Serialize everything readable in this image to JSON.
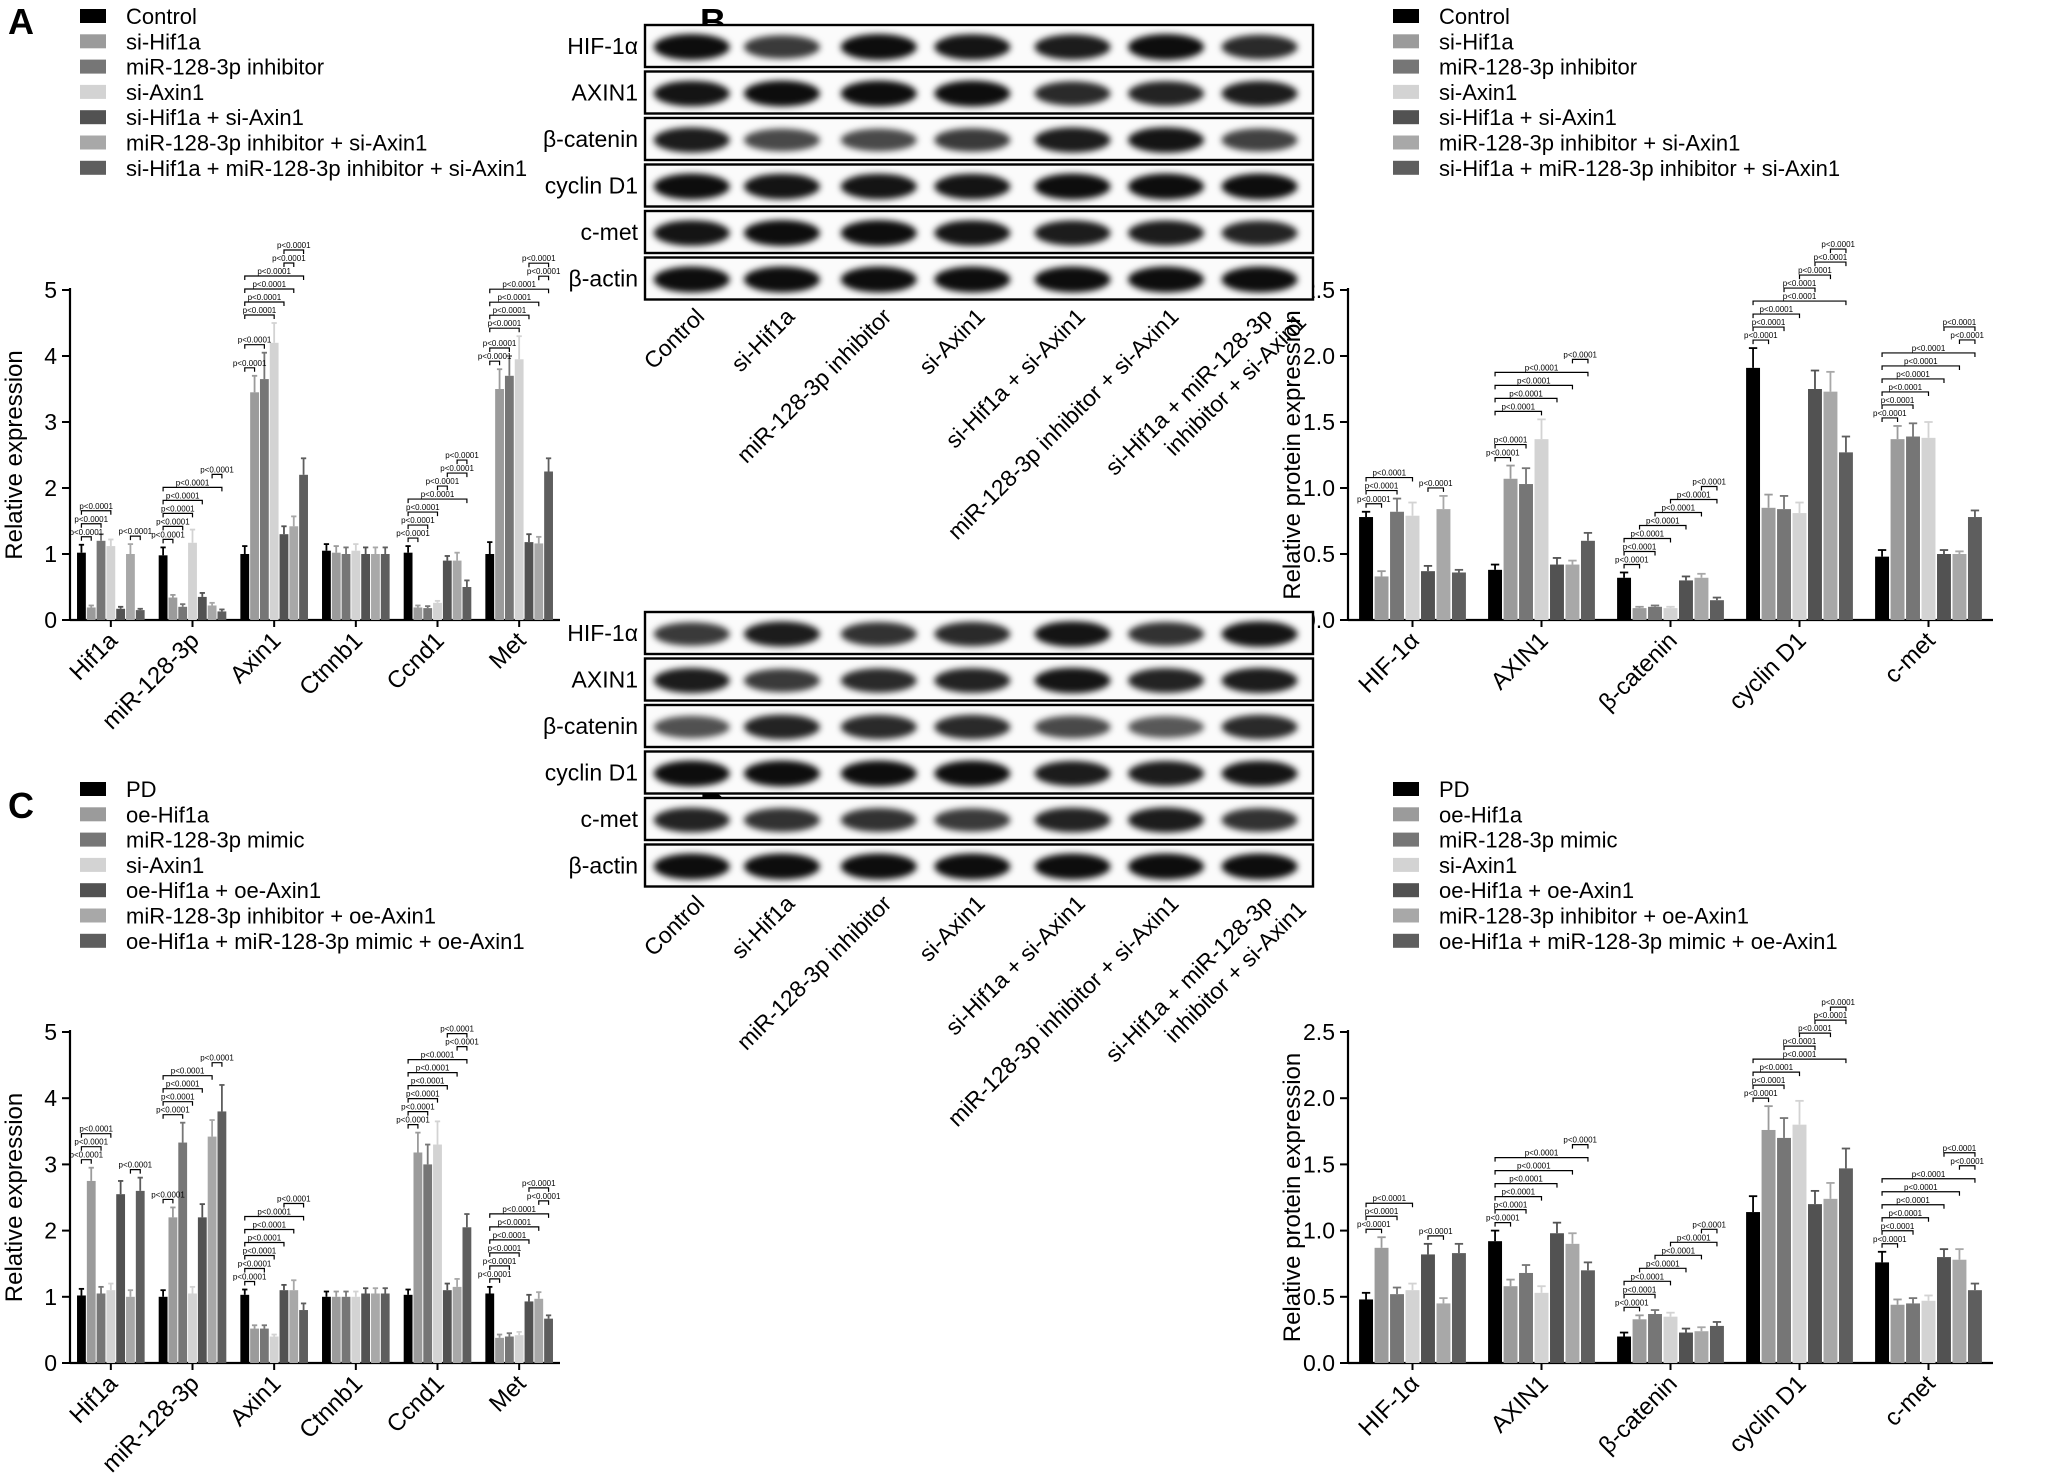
{
  "palette": [
    "#000000",
    "#9b9b9b",
    "#767676",
    "#d3d3d3",
    "#525252",
    "#a8a8a8",
    "#5e5e5e"
  ],
  "panels": [
    {
      "label": "A",
      "legend": [
        "Control",
        "si-Hif1a",
        "miR-128-3p inhibitor",
        "si-Axin1",
        "si-Hif1a + si-Axin1",
        "miR-128-3p inhibitor + si-Axin1",
        "si-Hif1a + miR-128-3p inhibitor + si-Axin1"
      ]
    },
    {
      "label": "B",
      "legend": [
        "Control",
        "si-Hif1a",
        "miR-128-3p inhibitor",
        "si-Axin1",
        "si-Hif1a + si-Axin1",
        "miR-128-3p inhibitor + si-Axin1",
        "si-Hif1a + miR-128-3p inhibitor + si-Axin1"
      ]
    },
    {
      "label": "C",
      "legend": [
        "PD",
        "oe-Hif1a",
        "miR-128-3p mimic",
        "si-Axin1",
        "oe-Hif1a + oe-Axin1",
        "miR-128-3p inhibitor + oe-Axin1",
        "oe-Hif1a + miR-128-3p mimic + oe-Axin1"
      ]
    },
    {
      "label": "D",
      "legend": [
        "PD",
        "oe-Hif1a",
        "miR-128-3p mimic",
        "si-Axin1",
        "oe-Hif1a + oe-Axin1",
        "miR-128-3p inhibitor + oe-Axin1",
        "oe-Hif1a + miR-128-3p mimic + oe-Axin1"
      ]
    }
  ],
  "blots": [
    {
      "panel": "B",
      "rows": [
        "HIF-1α",
        "AXIN1",
        "β-catenin",
        "cyclin D1",
        "c-met",
        "β-actin"
      ],
      "lanes": [
        "Control",
        "si-Hif1a",
        "miR-128-3p inhibitor",
        "si-Axin1",
        "si-Hif1a + si-Axin1",
        "miR-128-3p inhibitor + si-Axin1",
        "si-Hif1a + miR-128-3p inhibitor + si-Axin1"
      ]
    },
    {
      "panel": "D",
      "rows": [
        "HIF-1α",
        "AXIN1",
        "β-catenin",
        "cyclin D1",
        "c-met",
        "β-actin"
      ],
      "lanes": [
        "Control",
        "si-Hif1a",
        "miR-128-3p inhibitor",
        "si-Axin1",
        "si-Hif1a + si-Axin1",
        "miR-128-3p inhibitor + si-Axin1",
        "si-Hif1a + miR-128-3p inhibitor + si-Axin1"
      ]
    }
  ],
  "sig_label": "p<0.0001",
  "chart_data": [
    {
      "panel": "A",
      "type": "bar",
      "ylabel": "Relative expression",
      "ylim": [
        0,
        5
      ],
      "yticks": [
        0,
        1,
        2,
        3,
        4,
        5
      ],
      "categories": [
        "Hif1a",
        "miR-128-3p",
        "Axin1",
        "Ctnnb1",
        "Ccnd1",
        "Met"
      ],
      "values": [
        [
          1.02,
          0.19,
          1.2,
          1.12,
          0.17,
          1.0,
          0.15
        ],
        [
          0.98,
          0.34,
          0.2,
          1.17,
          0.35,
          0.22,
          0.13
        ],
        [
          1.0,
          3.45,
          3.65,
          4.2,
          1.3,
          1.42,
          2.2
        ],
        [
          1.05,
          1.02,
          1.0,
          1.05,
          1.0,
          1.0,
          1.0
        ],
        [
          1.02,
          0.19,
          0.18,
          0.26,
          0.9,
          0.9,
          0.5
        ],
        [
          1.0,
          3.5,
          3.7,
          3.95,
          1.18,
          1.16,
          2.25
        ]
      ],
      "errors": [
        [
          0.12,
          0.03,
          0.1,
          0.1,
          0.03,
          0.15,
          0.02
        ],
        [
          0.12,
          0.04,
          0.04,
          0.2,
          0.06,
          0.04,
          0.03
        ],
        [
          0.12,
          0.25,
          0.4,
          0.3,
          0.12,
          0.15,
          0.25
        ],
        [
          0.1,
          0.1,
          0.1,
          0.1,
          0.1,
          0.1,
          0.1
        ],
        [
          0.1,
          0.03,
          0.03,
          0.03,
          0.07,
          0.12,
          0.1
        ],
        [
          0.18,
          0.3,
          0.3,
          0.35,
          0.12,
          0.1,
          0.2
        ]
      ]
    },
    {
      "panel": "B",
      "type": "bar",
      "ylabel": "Relative protein expression",
      "ylim": [
        0,
        2.5
      ],
      "yticks": [
        0.0,
        0.5,
        1.0,
        1.5,
        2.0,
        2.5
      ],
      "categories": [
        "HIF-1α",
        "AXIN1",
        "β-catenin",
        "cyclin D1",
        "c-met"
      ],
      "values": [
        [
          0.78,
          0.33,
          0.82,
          0.79,
          0.37,
          0.84,
          0.36
        ],
        [
          0.38,
          1.07,
          1.03,
          1.37,
          0.42,
          0.42,
          0.6
        ],
        [
          0.32,
          0.09,
          0.1,
          0.09,
          0.3,
          0.32,
          0.15
        ],
        [
          1.91,
          0.85,
          0.84,
          0.81,
          1.75,
          1.73,
          1.27
        ],
        [
          0.48,
          1.37,
          1.39,
          1.38,
          0.5,
          0.5,
          0.78
        ]
      ],
      "errors": [
        [
          0.04,
          0.04,
          0.1,
          0.1,
          0.04,
          0.1,
          0.02
        ],
        [
          0.04,
          0.1,
          0.12,
          0.15,
          0.05,
          0.03,
          0.06
        ],
        [
          0.04,
          0.01,
          0.01,
          0.01,
          0.03,
          0.03,
          0.02
        ],
        [
          0.15,
          0.1,
          0.1,
          0.08,
          0.14,
          0.15,
          0.12
        ],
        [
          0.05,
          0.1,
          0.1,
          0.12,
          0.03,
          0.02,
          0.05
        ]
      ]
    },
    {
      "panel": "C",
      "type": "bar",
      "ylabel": "Relative expression",
      "ylim": [
        0,
        5
      ],
      "yticks": [
        0,
        1,
        2,
        3,
        4,
        5
      ],
      "categories": [
        "Hif1a",
        "miR-128-3p",
        "Axin1",
        "Ctnnb1",
        "Ccnd1",
        "Met"
      ],
      "values": [
        [
          1.02,
          2.75,
          1.05,
          1.1,
          2.55,
          1.0,
          2.6
        ],
        [
          1.0,
          2.2,
          3.33,
          1.05,
          2.2,
          3.42,
          3.8
        ],
        [
          1.03,
          0.52,
          0.52,
          0.4,
          1.1,
          1.1,
          0.8
        ],
        [
          1.0,
          1.0,
          1.0,
          1.0,
          1.05,
          1.05,
          1.05
        ],
        [
          1.03,
          3.18,
          3.0,
          3.3,
          1.1,
          1.15,
          2.05
        ],
        [
          1.05,
          0.38,
          0.4,
          0.42,
          0.93,
          0.97,
          0.67
        ]
      ],
      "errors": [
        [
          0.1,
          0.2,
          0.1,
          0.1,
          0.2,
          0.1,
          0.2
        ],
        [
          0.1,
          0.15,
          0.3,
          0.1,
          0.2,
          0.25,
          0.4
        ],
        [
          0.08,
          0.05,
          0.05,
          0.03,
          0.08,
          0.15,
          0.1
        ],
        [
          0.08,
          0.08,
          0.08,
          0.08,
          0.08,
          0.08,
          0.08
        ],
        [
          0.08,
          0.3,
          0.3,
          0.35,
          0.1,
          0.12,
          0.2
        ],
        [
          0.1,
          0.05,
          0.05,
          0.05,
          0.1,
          0.1,
          0.05
        ]
      ]
    },
    {
      "panel": "D",
      "type": "bar",
      "ylabel": "Relative protein expression",
      "ylim": [
        0,
        2.5
      ],
      "yticks": [
        0.0,
        0.5,
        1.0,
        1.5,
        2.0,
        2.5
      ],
      "categories": [
        "HIF-1α",
        "AXIN1",
        "β-catenin",
        "cyclin D1",
        "c-met"
      ],
      "values": [
        [
          0.48,
          0.87,
          0.52,
          0.55,
          0.82,
          0.45,
          0.83
        ],
        [
          0.92,
          0.58,
          0.68,
          0.53,
          0.98,
          0.9,
          0.7
        ],
        [
          0.2,
          0.33,
          0.37,
          0.35,
          0.23,
          0.24,
          0.28
        ],
        [
          1.14,
          1.76,
          1.7,
          1.8,
          1.2,
          1.24,
          1.47
        ],
        [
          0.76,
          0.44,
          0.45,
          0.47,
          0.8,
          0.78,
          0.55
        ]
      ],
      "errors": [
        [
          0.05,
          0.08,
          0.05,
          0.05,
          0.08,
          0.04,
          0.07
        ],
        [
          0.08,
          0.05,
          0.06,
          0.05,
          0.08,
          0.08,
          0.06
        ],
        [
          0.03,
          0.03,
          0.03,
          0.03,
          0.03,
          0.03,
          0.03
        ],
        [
          0.12,
          0.18,
          0.15,
          0.18,
          0.1,
          0.12,
          0.15
        ],
        [
          0.08,
          0.04,
          0.04,
          0.04,
          0.06,
          0.08,
          0.05
        ]
      ]
    }
  ]
}
